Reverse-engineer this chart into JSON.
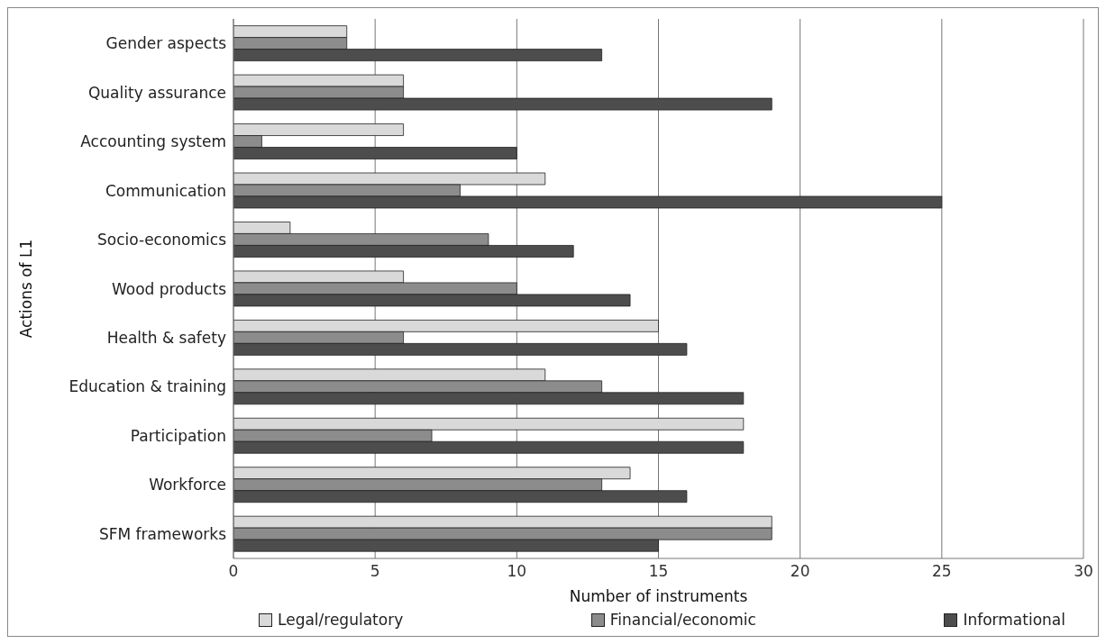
{
  "chart_data": {
    "type": "bar",
    "orientation": "horizontal",
    "ylabel": "Actions of L1",
    "xlabel": "Number of instruments",
    "categories": [
      "Gender aspects",
      "Quality assurance",
      "Accounting system",
      "Communication",
      "Socio-economics",
      "Wood products",
      "Health & safety",
      "Education & training",
      "Participation",
      "Workforce",
      "SFM frameworks"
    ],
    "series": [
      {
        "name": "Legal/regulatory",
        "color": "#d9d9d9",
        "values": [
          4,
          6,
          6,
          11,
          2,
          6,
          15,
          11,
          18,
          14,
          19
        ]
      },
      {
        "name": "Financial/economic",
        "color": "#8c8c8c",
        "values": [
          4,
          6,
          1,
          8,
          9,
          10,
          6,
          13,
          7,
          13,
          19
        ]
      },
      {
        "name": "Informational",
        "color": "#4d4d4d",
        "values": [
          13,
          19,
          10,
          25,
          12,
          14,
          16,
          18,
          18,
          16,
          15
        ]
      }
    ],
    "xlim": [
      0,
      30
    ],
    "xticks": [
      0,
      5,
      10,
      15,
      20,
      25,
      30
    ],
    "grid": "x",
    "legend": "bottom"
  }
}
